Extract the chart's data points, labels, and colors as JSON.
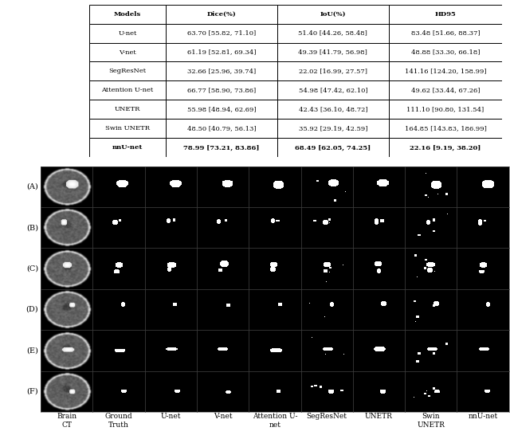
{
  "table": {
    "col_headers": [
      "Models",
      "Dice(%)",
      "IoU(%)",
      "HD95"
    ],
    "rows": [
      [
        "U-net",
        "63.70 [55.82, 71.10]",
        "51.40 [44.26, 58.48]",
        "83.48 [51.66, 88.37]"
      ],
      [
        "V-net",
        "61.19 [52.81, 69.34]",
        "49.39 [41.79, 56.98]",
        "48.88 [33.30, 66.18]"
      ],
      [
        "SegResNet",
        "32.66 [25.96, 39.74]",
        "22.02 [16.99, 27.57]",
        "141.16 [124.20, 158.99]"
      ],
      [
        "Attention U-net",
        "66.77 [58.90, 73.86]",
        "54.98 [47.42, 62.10]",
        "49.62 [33.44, 67.26]"
      ],
      [
        "UNETR",
        "55.98 [48.94, 62.69]",
        "42.43 [36.10, 48.72]",
        "111.10 [90.80, 131.54]"
      ],
      [
        "Swin UNETR",
        "48.50 [40.79, 56.13]",
        "35.92 [29.19, 42.59]",
        "164.85 [143.83, 186.99]"
      ],
      [
        "nnU-net",
        "78.99 [73.21, 83.86]",
        "68.49 [62.05, 74.25]",
        "22.16 [9.19, 38.20]"
      ]
    ]
  },
  "row_labels": [
    "(A)",
    "(B)",
    "(C)",
    "(D)",
    "(E)",
    "(F)"
  ],
  "col_labels": [
    "Brain\nCT",
    "Ground\nTruth",
    "U-net",
    "V-net",
    "Attention U-\nnet",
    "SegResNet",
    "UNETR",
    "Swin\nUNETR",
    "nnU-net"
  ],
  "n_rows": 6,
  "n_cols": 9,
  "table_fontsize": 6.0,
  "col_label_fontsize": 6.5,
  "row_label_fontsize": 7.0
}
